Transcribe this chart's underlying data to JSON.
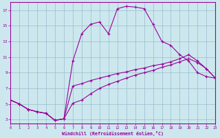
{
  "xlabel": "Windchill (Refroidissement éolien,°C)",
  "bg_color": "#cce8ee",
  "line_color": "#990099",
  "grid_color": "#99bbcc",
  "xlim": [
    0,
    23
  ],
  "ylim": [
    2.5,
    18.0
  ],
  "xticks": [
    0,
    1,
    2,
    3,
    4,
    5,
    6,
    7,
    8,
    9,
    10,
    11,
    12,
    13,
    14,
    15,
    16,
    17,
    18,
    19,
    20,
    21,
    22,
    23
  ],
  "yticks": [
    3,
    5,
    7,
    9,
    11,
    13,
    15,
    17
  ],
  "line1_x": [
    0,
    1,
    2,
    3,
    4,
    5,
    6,
    7,
    8,
    9,
    10,
    11,
    12,
    13,
    14,
    15,
    16,
    17,
    18,
    19,
    20,
    21,
    22,
    23
  ],
  "line1_y": [
    5.5,
    5.0,
    4.3,
    4.0,
    3.8,
    2.9,
    3.1,
    10.5,
    14.0,
    15.2,
    15.5,
    14.0,
    17.2,
    17.5,
    17.4,
    17.2,
    15.2,
    13.0,
    12.5,
    11.3,
    10.5,
    9.0,
    8.5,
    8.3
  ],
  "line2_x": [
    0,
    1,
    2,
    3,
    4,
    5,
    6,
    7,
    8,
    9,
    10,
    11,
    12,
    13,
    14,
    15,
    16,
    17,
    18,
    19,
    20,
    21,
    22,
    23
  ],
  "line2_y": [
    5.5,
    5.0,
    4.3,
    4.0,
    3.8,
    2.9,
    3.1,
    5.1,
    5.5,
    6.3,
    7.0,
    7.5,
    7.9,
    8.3,
    8.7,
    9.0,
    9.3,
    9.7,
    10.0,
    10.4,
    10.8,
    10.3,
    9.5,
    8.3
  ],
  "line3_x": [
    0,
    1,
    2,
    3,
    4,
    5,
    6,
    7,
    8,
    9,
    10,
    11,
    12,
    13,
    14,
    15,
    16,
    17,
    18,
    19,
    20,
    21,
    22,
    23
  ],
  "line3_y": [
    5.5,
    5.0,
    4.3,
    4.0,
    3.8,
    2.9,
    3.1,
    7.3,
    7.6,
    8.0,
    8.3,
    8.6,
    8.9,
    9.1,
    9.4,
    9.6,
    9.9,
    10.1,
    10.4,
    10.8,
    11.3,
    10.5,
    9.5,
    8.3
  ]
}
